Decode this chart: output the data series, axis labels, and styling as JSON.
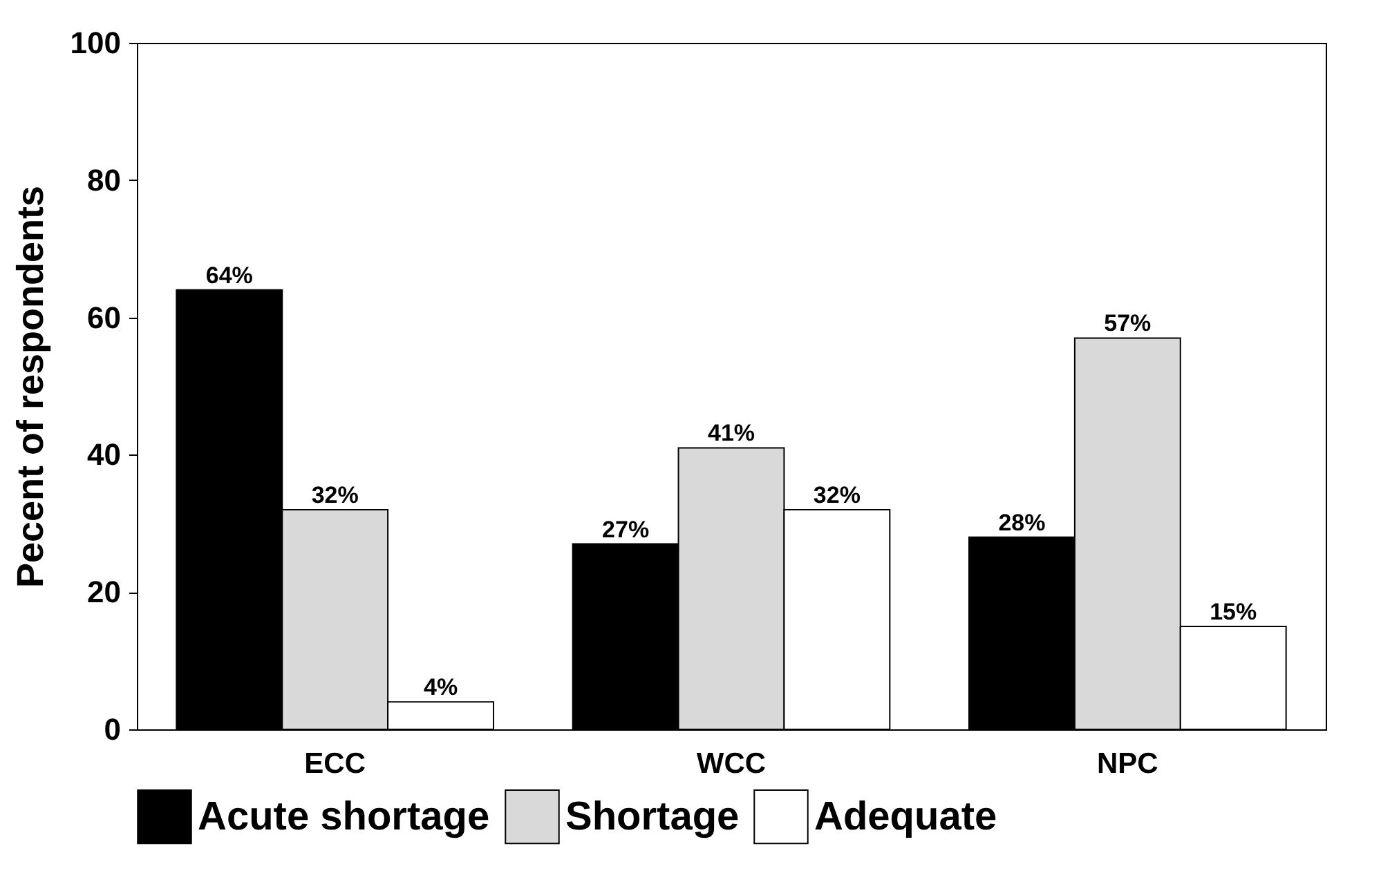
{
  "chart_data": {
    "type": "bar",
    "ylabel": "Pecent of respondents",
    "categories": [
      "ECC",
      "WCC",
      "NPC"
    ],
    "ylim": [
      0,
      100
    ],
    "yticks": [
      0,
      20,
      40,
      60,
      80,
      100
    ],
    "grid": false,
    "legend": "bottom",
    "series": [
      {
        "name": "Acute shortage",
        "color": "#000000",
        "values": [
          64,
          27,
          28
        ],
        "value_labels": [
          "64%",
          "27%",
          "28%"
        ]
      },
      {
        "name": "Shortage",
        "color": "#d9d9d9",
        "values": [
          32,
          41,
          57
        ],
        "value_labels": [
          "32%",
          "41%",
          "57%"
        ]
      },
      {
        "name": "Adequate",
        "color": "#ffffff",
        "values": [
          4,
          32,
          15
        ],
        "value_labels": [
          "4%",
          "32%",
          "15%"
        ]
      }
    ]
  }
}
